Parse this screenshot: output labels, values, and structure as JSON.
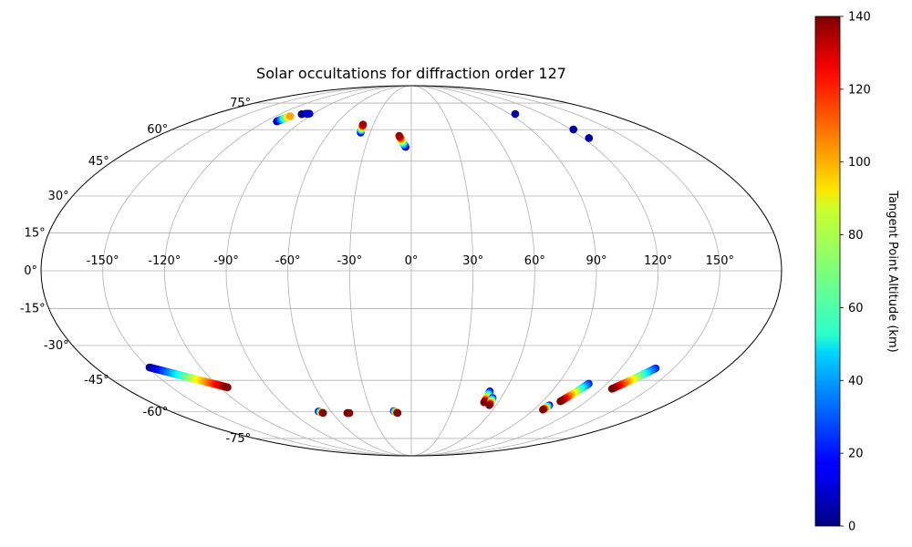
{
  "chart_data": {
    "type": "scatter",
    "projection": "mollweide",
    "title": "Solar occultations for diffraction order 127",
    "grid": true,
    "lon_ticks": [
      {
        "value": -150,
        "label": "-150°"
      },
      {
        "value": -120,
        "label": "-120°"
      },
      {
        "value": -90,
        "label": "-90°"
      },
      {
        "value": -60,
        "label": "-60°"
      },
      {
        "value": -30,
        "label": "-30°"
      },
      {
        "value": 0,
        "label": "0°"
      },
      {
        "value": 30,
        "label": "30°"
      },
      {
        "value": 60,
        "label": "60°"
      },
      {
        "value": 90,
        "label": "90°"
      },
      {
        "value": 120,
        "label": "120°"
      },
      {
        "value": 150,
        "label": "150°"
      }
    ],
    "lat_ticks": [
      {
        "value": 75,
        "label": "75°"
      },
      {
        "value": 60,
        "label": "60°"
      },
      {
        "value": 45,
        "label": "45°"
      },
      {
        "value": 30,
        "label": "30°"
      },
      {
        "value": 15,
        "label": "15°"
      },
      {
        "value": 0,
        "label": "0°"
      },
      {
        "value": -15,
        "label": "-15°"
      },
      {
        "value": -30,
        "label": "-30°"
      },
      {
        "value": -45,
        "label": "-45°"
      },
      {
        "value": -60,
        "label": "-60°"
      },
      {
        "value": -75,
        "label": "-75°"
      }
    ],
    "colorbar": {
      "label": "Tangent Point Altitude (km)",
      "colormap": "jet",
      "range": [
        0,
        140
      ],
      "ticks": [
        {
          "value": 0,
          "label": "0"
        },
        {
          "value": 20,
          "label": "20"
        },
        {
          "value": 40,
          "label": "40"
        },
        {
          "value": 60,
          "label": "60"
        },
        {
          "value": 80,
          "label": "80"
        },
        {
          "value": 100,
          "label": "100"
        },
        {
          "value": 120,
          "label": "120"
        },
        {
          "value": 140,
          "label": "140"
        }
      ]
    },
    "tracks": [
      {
        "start": [
          -110.7,
          64.3
        ],
        "end": [
          -107.1,
          67.2
        ],
        "alt_range": [
          0,
          100
        ]
      },
      {
        "start": [
          -99.9,
          68.3
        ],
        "end": [
          -99.9,
          68.3
        ],
        "alt_range": [
          0,
          0
        ]
      },
      {
        "start": [
          -97.0,
          68.6
        ],
        "end": [
          -93.6,
          68.6
        ],
        "alt_range": [
          10,
          10
        ]
      },
      {
        "start": [
          -37.0,
          58.5
        ],
        "end": [
          -38.3,
          62.7
        ],
        "alt_range": [
          0,
          135
        ]
      },
      {
        "start": [
          -3.7,
          51.5
        ],
        "end": [
          -8.6,
          56.9
        ],
        "alt_range": [
          0,
          135
        ]
      },
      {
        "start": [
          95.0,
          68.4
        ],
        "end": [
          95.0,
          68.4
        ],
        "alt_range": [
          5,
          5
        ]
      },
      {
        "start": [
          122.0,
          60.1
        ],
        "end": [
          122.0,
          60.1
        ],
        "alt_range": [
          5,
          5
        ]
      },
      {
        "start": [
          123.9,
          55.8
        ],
        "end": [
          123.9,
          55.8
        ],
        "alt_range": [
          5,
          5
        ]
      },
      {
        "start": [
          -149.3,
          -39.3
        ],
        "end": [
          -115.0,
          -48.2
        ],
        "alt_range": [
          0,
          140
        ]
      },
      {
        "start": [
          -69.4,
          -59.8
        ],
        "end": [
          -67.0,
          -60.6
        ],
        "alt_range": [
          0,
          140
        ]
      },
      {
        "start": [
          -48.7,
          -60.6
        ],
        "end": [
          -47.0,
          -60.6
        ],
        "alt_range": [
          140,
          140
        ]
      },
      {
        "start": [
          -13.1,
          -59.6
        ],
        "end": [
          -10.4,
          -60.6
        ],
        "alt_range": [
          10,
          140
        ]
      },
      {
        "start": [
          50.3,
          -50.0
        ],
        "end": [
          50.3,
          -55.3
        ],
        "alt_range": [
          10,
          140
        ]
      },
      {
        "start": [
          54.4,
          -53.1
        ],
        "end": [
          55.2,
          -56.7
        ],
        "alt_range": [
          15,
          140
        ]
      },
      {
        "start": [
          97.7,
          -56.7
        ],
        "end": [
          96.8,
          -58.9
        ],
        "alt_range": [
          10,
          140
        ]
      },
      {
        "start": [
          108.9,
          -46.5
        ],
        "end": [
          102.3,
          -54.8
        ],
        "alt_range": [
          20,
          140
        ]
      },
      {
        "start": [
          139.8,
          -39.7
        ],
        "end": [
          126.7,
          -48.9
        ],
        "alt_range": [
          20,
          140
        ]
      }
    ]
  }
}
